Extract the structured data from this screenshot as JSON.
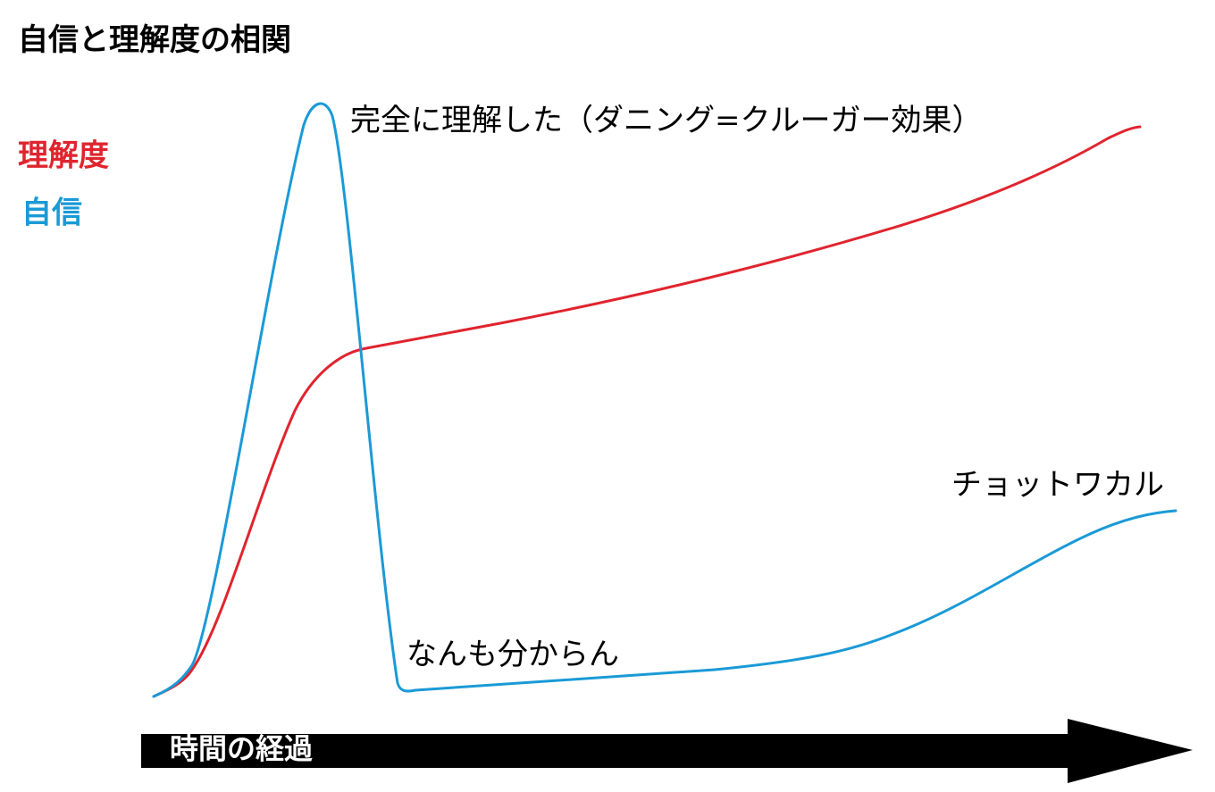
{
  "title": "自信と理解度の相関",
  "legend": {
    "understanding": "理解度",
    "confidence": "自信"
  },
  "annotations": {
    "peak": "完全に理解した（ダニング=クルーガー効果）",
    "valley": "なんも分からん",
    "end": "チョットワカル"
  },
  "arrow_label": "時間の経過"
}
